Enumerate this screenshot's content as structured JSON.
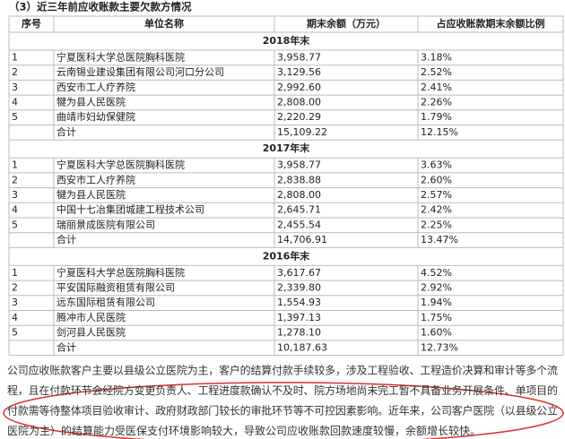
{
  "title": "（3）近三年前应收账款主要欠款方情况",
  "table": {
    "header": [
      "序号",
      "单位名称",
      "期末余额（万元）",
      "占应收账款期末余额比例"
    ],
    "sections": [
      {
        "year": "2018年末",
        "rows": [
          [
            "1",
            "宁夏医科大学总医院胸科医院",
            "3,958.77",
            "3.18%"
          ],
          [
            "2",
            "云南锡业建设集团有限公司河口分公司",
            "3,129.56",
            "2.52%"
          ],
          [
            "3",
            "西安市工人疗养院",
            "2,992.60",
            "2.41%"
          ],
          [
            "4",
            "犍为县人民医院",
            "2,808.00",
            "2.26%"
          ],
          [
            "5",
            "曲靖市妇幼保健院",
            "2,220.29",
            "1.79%"
          ],
          [
            "",
            "合计",
            "15,109.22",
            "12.15%"
          ]
        ]
      },
      {
        "year": "2017年末",
        "rows": [
          [
            "1",
            "宁夏医科大学总医院胸科医院",
            "3,958.77",
            "3.63%"
          ],
          [
            "2",
            "西安市工人疗养院",
            "2,838.88",
            "2.60%"
          ],
          [
            "3",
            "犍为县人民医院",
            "2,808.00",
            "2.57%"
          ],
          [
            "4",
            "中国十七冶集团城建工程技术公司",
            "2,645.71",
            "2.42%"
          ],
          [
            "5",
            "瑞丽景成医院有限公司",
            "2,455.54",
            "2.25%"
          ],
          [
            "",
            "合计",
            "14,706.91",
            "13.47%"
          ]
        ]
      },
      {
        "year": "2016年末",
        "rows": [
          [
            "1",
            "宁夏医科大学总医院胸科医院",
            "3,617.67",
            "4.52%"
          ],
          [
            "2",
            "平安国际融资租赁有限公司",
            "2,339.80",
            "2.92%"
          ],
          [
            "3",
            "远东国际租赁有限公司",
            "1,554.93",
            "1.94%"
          ],
          [
            "4",
            "腾冲市人民医院",
            "1,397.13",
            "1.75%"
          ],
          [
            "5",
            "剑河县人民医院",
            "1,278.10",
            "1.60%"
          ],
          [
            "",
            "合计",
            "10,187.63",
            "12.73%"
          ]
        ]
      }
    ]
  },
  "paragraph": [
    "公司应收账款客户主要以县级公立医院为主，客户的结算付款手续较多，涉及工程验收、工程造价决算和审计等多个流",
    "程，且在付款环节会经院方变更负责人、工程进度款确认不及时、院方场地尚未完工暂不具备业务开展条件、单项目的",
    "付款需等待整体项目验收审计、政府财政部门较长的审批环节等不可控因素影响。近年来，公司客户医院（以县级公立",
    "医院为主）的结算能力受医保支付环境影响较大，导致公司应收账款回款速度较慢，余额增长较快。"
  ]
}
